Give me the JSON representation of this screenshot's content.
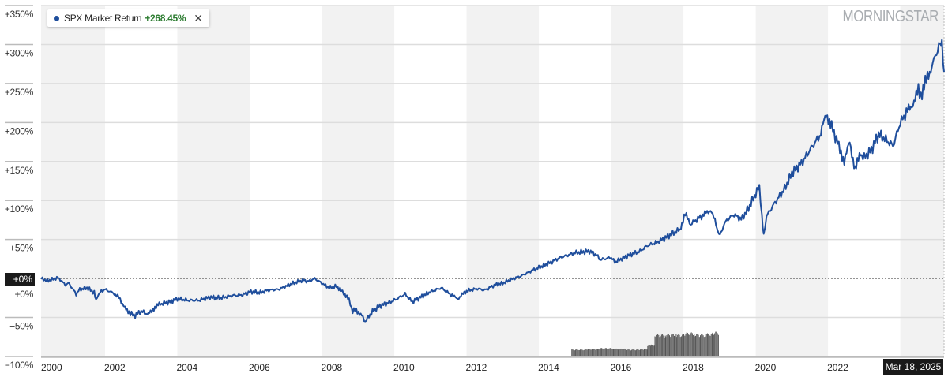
{
  "chart_data": {
    "type": "line",
    "title": "",
    "xlabel": "",
    "ylabel": "",
    "xlim": [
      2000.23,
      2025.21
    ],
    "ylim": [
      -100,
      350
    ],
    "grid": true,
    "x_ticks": [
      "2000",
      "2002",
      "2004",
      "2006",
      "2008",
      "2010",
      "2012",
      "2014",
      "2016",
      "2018",
      "2020",
      "2022"
    ],
    "x_tick_values": [
      2000.23,
      2002,
      2004,
      2006,
      2008,
      2010,
      2012,
      2014,
      2016,
      2018,
      2020,
      2022
    ],
    "y_ticks": [
      "+350%",
      "+300%",
      "+250%",
      "+200%",
      "+150%",
      "+100%",
      "+50%",
      "+0%",
      "−50%",
      "−100%"
    ],
    "y_tick_values": [
      350,
      300,
      250,
      200,
      150,
      100,
      50,
      0,
      -50,
      -100
    ],
    "shaded_year_bands": [
      [
        2000.23,
        2002
      ],
      [
        2004,
        2006
      ],
      [
        2008,
        2010
      ],
      [
        2012,
        2014
      ],
      [
        2016,
        2018
      ],
      [
        2020,
        2022
      ],
      [
        2024,
        2025.21
      ]
    ],
    "current_value_label": "+0%",
    "current_date_label": "Mar 18, 2025",
    "series": [
      {
        "name": "SPX Market Return",
        "color": "#1f4e9c",
        "x": [
          2000.23,
          2000.4,
          2000.7,
          2000.9,
          2001.0,
          2001.2,
          2001.3,
          2001.5,
          2001.7,
          2001.75,
          2001.9,
          2002.0,
          2002.2,
          2002.35,
          2002.55,
          2002.7,
          2002.8,
          2003.0,
          2003.2,
          2003.35,
          2003.5,
          2003.8,
          2004.0,
          2004.3,
          2004.6,
          2004.9,
          2005.2,
          2005.5,
          2005.8,
          2006.0,
          2006.3,
          2006.5,
          2006.8,
          2007.0,
          2007.2,
          2007.5,
          2007.6,
          2007.8,
          2008.0,
          2008.2,
          2008.4,
          2008.6,
          2008.75,
          2008.85,
          2008.95,
          2009.1,
          2009.2,
          2009.4,
          2009.6,
          2009.8,
          2010.0,
          2010.3,
          2010.5,
          2010.8,
          2011.0,
          2011.3,
          2011.6,
          2011.75,
          2012.0,
          2012.3,
          2012.5,
          2012.8,
          2013.0,
          2013.3,
          2013.5,
          2013.8,
          2014.0,
          2014.3,
          2014.6,
          2014.8,
          2015.0,
          2015.4,
          2015.6,
          2015.7,
          2016.0,
          2016.1,
          2016.5,
          2016.8,
          2017.0,
          2017.3,
          2017.6,
          2017.9,
          2018.05,
          2018.2,
          2018.5,
          2018.75,
          2018.9,
          2018.98,
          2019.2,
          2019.4,
          2019.6,
          2019.8,
          2020.1,
          2020.17,
          2020.22,
          2020.3,
          2020.5,
          2020.8,
          2021.0,
          2021.3,
          2021.5,
          2021.8,
          2021.95,
          2022.1,
          2022.3,
          2022.45,
          2022.6,
          2022.75,
          2022.9,
          2023.0,
          2023.2,
          2023.4,
          2023.6,
          2023.8,
          2024.0,
          2024.2,
          2024.35,
          2024.5,
          2024.6,
          2024.75,
          2024.9,
          2025.0,
          2025.1,
          2025.15,
          2025.21
        ],
        "y": [
          0,
          -3,
          1,
          -8,
          -6,
          -20,
          -14,
          -12,
          -18,
          -27,
          -16,
          -14,
          -18,
          -22,
          -38,
          -44,
          -48,
          -42,
          -46,
          -38,
          -33,
          -30,
          -26,
          -28,
          -28,
          -24,
          -25,
          -22,
          -21,
          -17,
          -18,
          -15,
          -14,
          -10,
          -6,
          -2,
          -4,
          0,
          -6,
          -12,
          -10,
          -18,
          -28,
          -42,
          -40,
          -48,
          -55,
          -42,
          -35,
          -32,
          -28,
          -20,
          -30,
          -22,
          -17,
          -12,
          -22,
          -26,
          -16,
          -13,
          -15,
          -8,
          -6,
          0,
          3,
          10,
          14,
          20,
          27,
          30,
          33,
          35,
          30,
          24,
          27,
          21,
          30,
          35,
          42,
          47,
          55,
          63,
          82,
          70,
          80,
          88,
          70,
          55,
          75,
          82,
          76,
          90,
          118,
          80,
          55,
          80,
          95,
          115,
          135,
          150,
          165,
          185,
          212,
          195,
          170,
          150,
          175,
          140,
          160,
          155,
          165,
          185,
          178,
          170,
          200,
          215,
          225,
          240,
          235,
          260,
          275,
          290,
          300,
          295,
          265
        ]
      }
    ],
    "volume": {
      "color": "#555555",
      "x": [
        2014.9,
        2015.3,
        2015.7,
        2016.0,
        2016.4,
        2016.8,
        2017.0,
        2017.1,
        2017.2,
        2017.5,
        2017.8,
        2018.0,
        2018.3,
        2018.6,
        2018.8,
        2018.98
      ],
      "relative_height": [
        0.25,
        0.27,
        0.3,
        0.28,
        0.25,
        0.27,
        0.4,
        0.42,
        0.78,
        0.8,
        0.78,
        0.85,
        0.8,
        0.82,
        0.88,
        0.85
      ]
    }
  },
  "legend": {
    "label": "SPX Market Return",
    "value": "+268.45%",
    "value_color": "#2e7d32",
    "dot_color": "#1f4e9c",
    "close_icon": "close-x-icon"
  },
  "logo": {
    "text": "MORNINGSTAR"
  }
}
